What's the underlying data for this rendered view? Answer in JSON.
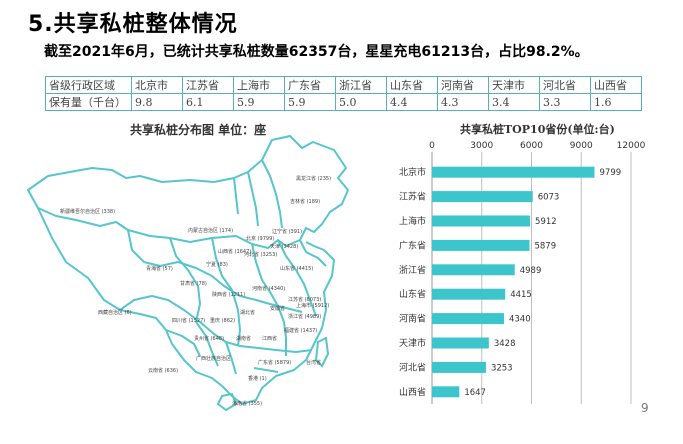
{
  "slide": {
    "title": "5.共享私桩整体情况",
    "subtitle": "截至2021年6月，已统计共享私桩数量62357台，星星充电61213台，占比98.2%。",
    "page_number": "9"
  },
  "table": {
    "row_headers": [
      "省级行政区域",
      "保有量（千台）"
    ],
    "provinces": [
      "北京市",
      "江苏省",
      "上海市",
      "广东省",
      "浙江省",
      "山东省",
      "河南省",
      "天津市",
      "河北省",
      "山西省"
    ],
    "values": [
      "9.8",
      "6.1",
      "5.9",
      "5.9",
      "5.0",
      "4.4",
      "4.3",
      "3.4",
      "3.3",
      "1.6"
    ]
  },
  "map": {
    "title": "共享私桩分布图  单位：座",
    "labels": [
      "黑龙江省 (235)",
      "吉林省 (189)",
      "辽宁省 (391)",
      "新疆维吾尔自治区 (338)",
      "内蒙古自治区 (174)",
      "北京 (9799)",
      "天津 (3428)",
      "河北省 (3253)",
      "山西省 (1647)",
      "山东省 (4415)",
      "宁夏 (83)",
      "甘肃省 (78)",
      "青海省 (57)",
      "陕西省 (1211)",
      "河南省 (4340)",
      "江苏省 (6073)",
      "上海市 (5912)",
      "西藏自治区 (6)",
      "四川省 (1527)",
      "重庆 (862)",
      "湖北省",
      "安徽省",
      "浙江省 (4989)",
      "湖南省",
      "江西省",
      "福建省 (1437)",
      "贵州省 (648)",
      "广西壮族自治区",
      "广东省 (5879)",
      "云南省 (636)",
      "香港 (1)",
      "海南省 (355)",
      "台湾省"
    ]
  },
  "chart_data": {
    "type": "bar",
    "orientation": "horizontal",
    "title": "共享私桩TOP10省份(单位:台)",
    "categories": [
      "北京市",
      "江苏省",
      "上海市",
      "广东省",
      "浙江省",
      "山东省",
      "河南省",
      "天津市",
      "河北省",
      "山西省"
    ],
    "values": [
      9799,
      6073,
      5912,
      5879,
      4989,
      4415,
      4340,
      3428,
      3253,
      1647
    ],
    "xlim": [
      0,
      12000
    ],
    "xticks": [
      0,
      3000,
      6000,
      9000,
      12000
    ],
    "xlabel": "",
    "ylabel": "",
    "grid": true,
    "legend": "none",
    "colors": {
      "bar": "#3cc6cc",
      "grid": "#bfbfbf"
    }
  }
}
